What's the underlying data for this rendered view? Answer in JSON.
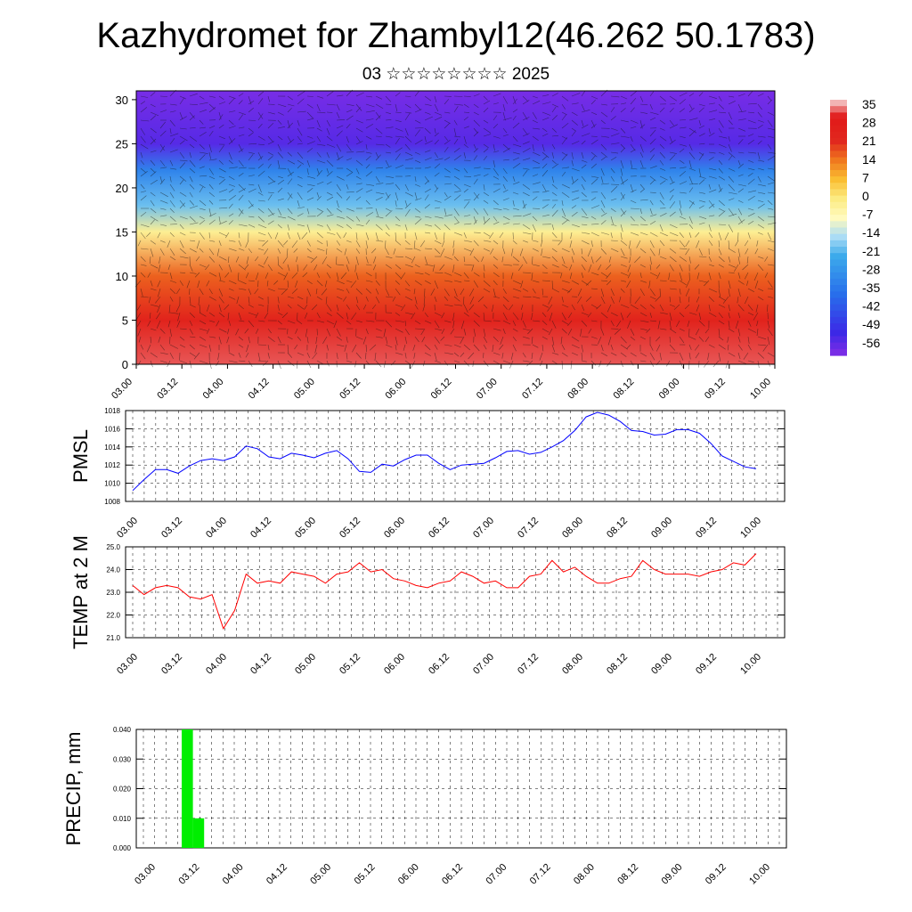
{
  "header": {
    "title": "Kazhydromet for Zhambyl12(46.262 50.1783)",
    "subtitle": "03 ☆☆☆☆☆☆☆☆ 2025"
  },
  "time_ticks": [
    "03.00",
    "03.12",
    "04.00",
    "04.12",
    "05.00",
    "05.12",
    "06.00",
    "06.12",
    "07.00",
    "07.12",
    "08.00",
    "08.12",
    "09.00",
    "09.12",
    "10.00"
  ],
  "chart_data": [
    {
      "type": "heatmap",
      "y_ticks": [
        0,
        5,
        10,
        15,
        20,
        25,
        30
      ],
      "ylim": [
        0,
        31
      ],
      "colorbar": {
        "labels": [
          "35",
          "28",
          "21",
          "14",
          "7",
          "0",
          "-7",
          "-14",
          "-21",
          "-28",
          "-35",
          "-42",
          "-49",
          "-56"
        ],
        "colors": [
          "#f4a0a0",
          "#e02020",
          "#f08020",
          "#f8d040",
          "#fff8b0",
          "#a0d8f0",
          "#2090e0",
          "#3040e0",
          "#7030e0"
        ]
      },
      "temperature_by_height": [
        {
          "y": 0,
          "temp": 32
        },
        {
          "y": 5,
          "temp": 24
        },
        {
          "y": 10,
          "temp": 16
        },
        {
          "y": 15,
          "temp": -2
        },
        {
          "y": 18,
          "temp": -18
        },
        {
          "y": 22,
          "temp": -30
        },
        {
          "y": 25,
          "temp": -52
        },
        {
          "y": 31,
          "temp": -56
        }
      ]
    },
    {
      "type": "line",
      "ylabel": "PMSL",
      "y_ticks": [
        1008,
        1010,
        1012,
        1014,
        1016,
        1018
      ],
      "ylim": [
        1008,
        1018
      ],
      "color": "#0000ff",
      "values": [
        1009.2,
        1010.4,
        1011.5,
        1011.5,
        1011.1,
        1011.9,
        1012.5,
        1012.7,
        1012.5,
        1012.9,
        1014.1,
        1013.8,
        1012.9,
        1012.7,
        1013.3,
        1013.1,
        1012.8,
        1013.3,
        1013.6,
        1012.7,
        1011.3,
        1011.2,
        1012.1,
        1011.9,
        1012.6,
        1013.1,
        1013.1,
        1012.2,
        1011.5,
        1012.0,
        1012.1,
        1012.2,
        1012.8,
        1013.5,
        1013.6,
        1013.2,
        1013.4,
        1014.0,
        1014.7,
        1015.8,
        1017.3,
        1017.8,
        1017.5,
        1016.8,
        1015.8,
        1015.7,
        1015.3,
        1015.4,
        1015.9,
        1015.9,
        1015.5,
        1014.4,
        1013.0,
        1012.4,
        1011.8,
        1011.6
      ]
    },
    {
      "type": "line",
      "ylabel": "TEMP at 2 M",
      "y_ticks": [
        21.0,
        22.0,
        23.0,
        24.0,
        25.0
      ],
      "ylim": [
        21,
        25
      ],
      "color": "#ff0000",
      "values": [
        23.3,
        22.9,
        23.2,
        23.3,
        23.2,
        22.8,
        22.7,
        22.9,
        21.4,
        22.2,
        23.8,
        23.4,
        23.5,
        23.4,
        23.9,
        23.8,
        23.7,
        23.4,
        23.8,
        23.9,
        24.3,
        23.9,
        24.0,
        23.6,
        23.5,
        23.3,
        23.2,
        23.4,
        23.5,
        23.9,
        23.7,
        23.4,
        23.5,
        23.2,
        23.2,
        23.7,
        23.8,
        24.4,
        23.9,
        24.1,
        23.7,
        23.4,
        23.4,
        23.6,
        23.7,
        24.4,
        24.0,
        23.8,
        23.8,
        23.8,
        23.7,
        23.9,
        24.0,
        24.3,
        24.2,
        24.7
      ]
    },
    {
      "type": "bar",
      "ylabel": "PRECIP, mm",
      "y_ticks": [
        "0.000",
        "0.010",
        "0.020",
        "0.030",
        "0.040"
      ],
      "ylim": [
        0,
        0.04
      ],
      "color": "#00ee00",
      "values": [
        0,
        0,
        0,
        0,
        0,
        0,
        0.04,
        0.01,
        0,
        0,
        0,
        0,
        0,
        0,
        0,
        0,
        0,
        0,
        0,
        0,
        0,
        0,
        0,
        0,
        0,
        0,
        0,
        0,
        0,
        0,
        0,
        0,
        0,
        0,
        0,
        0,
        0,
        0,
        0,
        0,
        0,
        0,
        0,
        0,
        0,
        0,
        0,
        0,
        0,
        0,
        0,
        0,
        0,
        0,
        0,
        0
      ]
    }
  ]
}
